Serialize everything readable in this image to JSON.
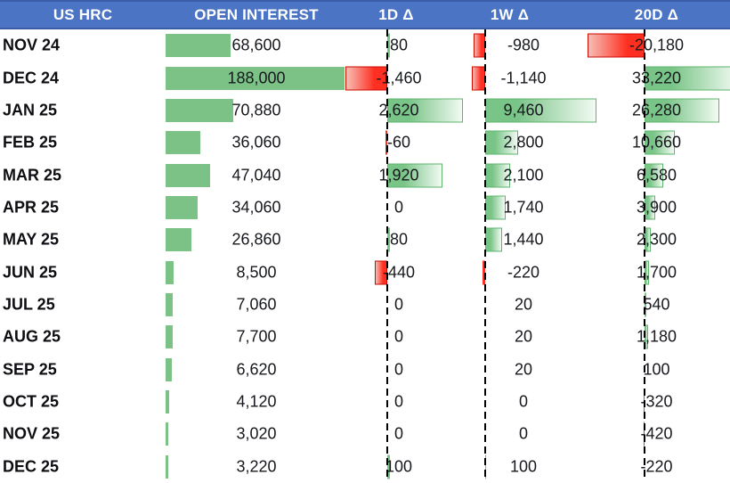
{
  "header": {
    "columns": [
      "US HRC",
      "OPEN INTEREST",
      "1D Δ",
      "1W Δ",
      "20D Δ"
    ]
  },
  "rows": [
    {
      "month": "NOV 24",
      "open_interest": "68,600",
      "delta_1d": "80",
      "delta_1w": "-980",
      "delta_20d": "-20,180"
    },
    {
      "month": "DEC 24",
      "open_interest": "188,000",
      "delta_1d": "-1,460",
      "delta_1w": "-1,140",
      "delta_20d": "33,220"
    },
    {
      "month": "JAN 25",
      "open_interest": "70,880",
      "delta_1d": "2,620",
      "delta_1w": "9,460",
      "delta_20d": "26,280"
    },
    {
      "month": "FEB 25",
      "open_interest": "36,060",
      "delta_1d": "-60",
      "delta_1w": "2,800",
      "delta_20d": "10,660"
    },
    {
      "month": "MAR 25",
      "open_interest": "47,040",
      "delta_1d": "1,920",
      "delta_1w": "2,100",
      "delta_20d": "6,580"
    },
    {
      "month": "APR 25",
      "open_interest": "34,060",
      "delta_1d": "0",
      "delta_1w": "1,740",
      "delta_20d": "3,900"
    },
    {
      "month": "MAY 25",
      "open_interest": "26,860",
      "delta_1d": "80",
      "delta_1w": "1,440",
      "delta_20d": "2,300"
    },
    {
      "month": "JUN 25",
      "open_interest": "8,500",
      "delta_1d": "-440",
      "delta_1w": "-220",
      "delta_20d": "1,700"
    },
    {
      "month": "JUL 25",
      "open_interest": "7,060",
      "delta_1d": "0",
      "delta_1w": "20",
      "delta_20d": "540"
    },
    {
      "month": "AUG 25",
      "open_interest": "7,700",
      "delta_1d": "0",
      "delta_1w": "20",
      "delta_20d": "1,180"
    },
    {
      "month": "SEP 25",
      "open_interest": "6,620",
      "delta_1d": "0",
      "delta_1w": "20",
      "delta_20d": "100"
    },
    {
      "month": "OCT 25",
      "open_interest": "4,120",
      "delta_1d": "0",
      "delta_1w": "0",
      "delta_20d": "-320"
    },
    {
      "month": "NOV 25",
      "open_interest": "3,020",
      "delta_1d": "0",
      "delta_1w": "0",
      "delta_20d": "-420"
    },
    {
      "month": "DEC 25",
      "open_interest": "3,220",
      "delta_1d": "100",
      "delta_1w": "100",
      "delta_20d": "-220"
    }
  ],
  "colors": {
    "header_bg": "#4B74C4",
    "header_border": "#3A5DA8",
    "header_text": "#FFFFFF",
    "text": "#16181D",
    "bar_green_solid": "#7CC186",
    "bar_green_border": "#5FB56D",
    "bar_green_grad_solid": "#79C487",
    "bar_green_grad_light": "#F1FAF2",
    "bar_red_border": "#CC0A00",
    "bar_red_grad_solid": "#FF2F21",
    "bar_red_grad_light": "#F6BFB7",
    "axis_line": "#000000"
  },
  "chart_data": {
    "type": "table",
    "columns": [
      "US HRC",
      "OPEN INTEREST",
      "1D Δ",
      "1W Δ",
      "20D Δ"
    ],
    "rows": [
      [
        "NOV 24",
        68600,
        80,
        -980,
        -20180
      ],
      [
        "DEC 24",
        188000,
        -1460,
        -1140,
        33220
      ],
      [
        "JAN 25",
        70880,
        2620,
        9460,
        26280
      ],
      [
        "FEB 25",
        36060,
        -60,
        2800,
        10660
      ],
      [
        "MAR 25",
        47040,
        1920,
        2100,
        6580
      ],
      [
        "APR 25",
        34060,
        0,
        1740,
        3900
      ],
      [
        "MAY 25",
        26860,
        80,
        1440,
        2300
      ],
      [
        "JUN 25",
        8500,
        -440,
        -220,
        1700
      ],
      [
        "JUL 25",
        7060,
        0,
        20,
        540
      ],
      [
        "AUG 25",
        7700,
        0,
        20,
        1180
      ],
      [
        "SEP 25",
        6620,
        0,
        20,
        100
      ],
      [
        "OCT 25",
        4120,
        0,
        0,
        -320
      ],
      [
        "NOV 25",
        3020,
        0,
        0,
        -420
      ],
      [
        "DEC 25",
        3220,
        100,
        100,
        -220
      ]
    ],
    "bar_axes": {
      "open_interest": {
        "min": 0,
        "max": 188000,
        "style": "solid-green-left-aligned"
      },
      "delta_1d": {
        "min": -1460,
        "max": 2620,
        "style": "gradient; dashed zero axis"
      },
      "delta_1w": {
        "min": -1140,
        "max": 9460,
        "style": "gradient; dashed zero axis"
      },
      "delta_20d": {
        "min": -20180,
        "max": 33220,
        "style": "gradient; dashed zero axis"
      }
    },
    "legend_position": "none",
    "grid": false
  }
}
